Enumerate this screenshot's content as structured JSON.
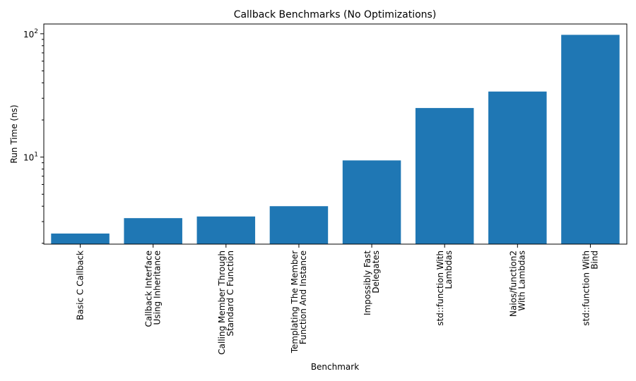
{
  "chart_data": {
    "type": "bar",
    "title": "Callback Benchmarks (No Optimizations)",
    "xlabel": "Benchmark",
    "ylabel": "Run Time (ns)",
    "yscale": "log",
    "ylim": [
      1.97,
      120
    ],
    "yticks": [
      {
        "value": 10,
        "base": "10",
        "exp": "1"
      },
      {
        "value": 100,
        "base": "10",
        "exp": "2"
      }
    ],
    "grid": false,
    "color": "#1f77b4",
    "categories": [
      [
        "Basic C Callback"
      ],
      [
        "Callback Interface",
        "Using Inheritance"
      ],
      [
        "Calling Member Through",
        "Standard C Function"
      ],
      [
        "Templating The Member",
        "Function And Instance"
      ],
      [
        "Impossibly Fast",
        "Delegates"
      ],
      [
        "std::function With",
        "Lambdas"
      ],
      [
        "Naios/function2",
        "With Lambdas"
      ],
      [
        "std::function With",
        "Bind"
      ]
    ],
    "values": [
      2.4,
      3.2,
      3.3,
      4.0,
      9.4,
      25.0,
      34.0,
      98.0
    ]
  }
}
